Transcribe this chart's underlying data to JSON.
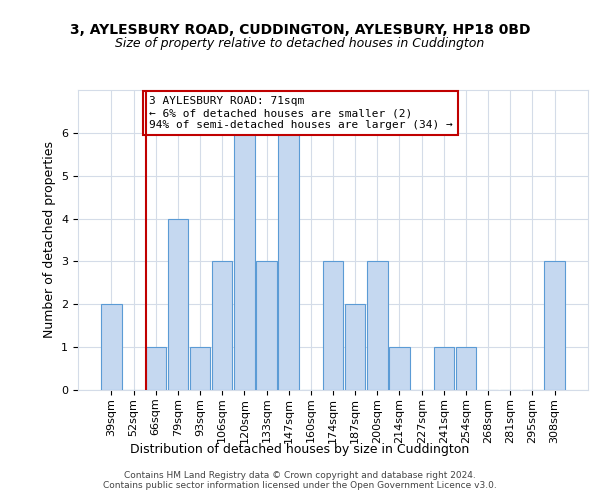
{
  "title": "3, AYLESBURY ROAD, CUDDINGTON, AYLESBURY, HP18 0BD",
  "subtitle": "Size of property relative to detached houses in Cuddington",
  "xlabel": "Distribution of detached houses by size in Cuddington",
  "ylabel": "Number of detached properties",
  "categories": [
    "39sqm",
    "52sqm",
    "66sqm",
    "79sqm",
    "93sqm",
    "106sqm",
    "120sqm",
    "133sqm",
    "147sqm",
    "160sqm",
    "174sqm",
    "187sqm",
    "200sqm",
    "214sqm",
    "227sqm",
    "241sqm",
    "254sqm",
    "268sqm",
    "281sqm",
    "295sqm",
    "308sqm"
  ],
  "values": [
    2,
    0,
    1,
    4,
    1,
    3,
    6,
    3,
    6,
    0,
    3,
    2,
    3,
    1,
    0,
    1,
    1,
    0,
    0,
    0,
    3
  ],
  "bar_color": "#c5d8f0",
  "bar_edge_color": "#5b9bd5",
  "highlight_index": 2,
  "highlight_color": "#c00000",
  "annotation_line1": "3 AYLESBURY ROAD: 71sqm",
  "annotation_line2": "← 6% of detached houses are smaller (2)",
  "annotation_line3": "94% of semi-detached houses are larger (34) →",
  "annotation_box_color": "#ffffff",
  "annotation_box_edge_color": "#c00000",
  "ylim": [
    0,
    7
  ],
  "yticks": [
    0,
    1,
    2,
    3,
    4,
    5,
    6
  ],
  "title_fontsize": 10,
  "subtitle_fontsize": 9,
  "xlabel_fontsize": 9,
  "ylabel_fontsize": 9,
  "tick_fontsize": 8,
  "annotation_fontsize": 8,
  "footer_text": "Contains HM Land Registry data © Crown copyright and database right 2024.\nContains public sector information licensed under the Open Government Licence v3.0.",
  "background_color": "#ffffff",
  "grid_color": "#d4dce8"
}
